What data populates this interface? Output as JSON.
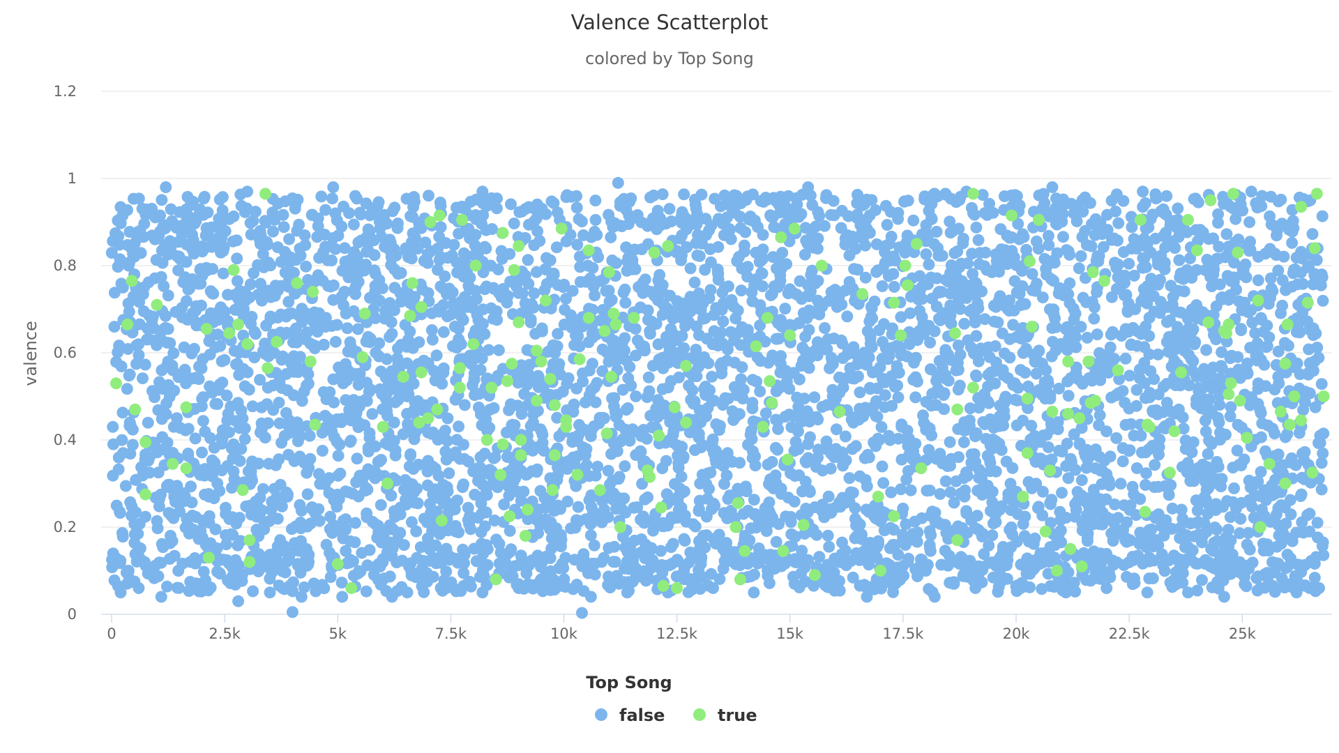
{
  "chart_data": {
    "type": "scatter",
    "title": "Valence Scatterplot",
    "subtitle": "colored by Top Song",
    "xlabel": "",
    "ylabel": "valence",
    "xlim": [
      0,
      27000
    ],
    "ylim": [
      0,
      1.2
    ],
    "x_ticks": [
      {
        "value": 0,
        "label": "0"
      },
      {
        "value": 2500,
        "label": "2.5k"
      },
      {
        "value": 5000,
        "label": "5k"
      },
      {
        "value": 7500,
        "label": "7.5k"
      },
      {
        "value": 10000,
        "label": "10k"
      },
      {
        "value": 12500,
        "label": "12.5k"
      },
      {
        "value": 15000,
        "label": "15k"
      },
      {
        "value": 17500,
        "label": "17.5k"
      },
      {
        "value": 20000,
        "label": "20k"
      },
      {
        "value": 22500,
        "label": "22.5k"
      },
      {
        "value": 25000,
        "label": "25k"
      }
    ],
    "y_ticks": [
      {
        "value": 0,
        "label": "0"
      },
      {
        "value": 0.2,
        "label": "0.2"
      },
      {
        "value": 0.4,
        "label": "0.4"
      },
      {
        "value": 0.6,
        "label": "0.6"
      },
      {
        "value": 0.8,
        "label": "0.8"
      },
      {
        "value": 1.0,
        "label": "1"
      },
      {
        "value": 1.2,
        "label": "1.2"
      }
    ],
    "grid": "horizontal",
    "legend": {
      "title": "Top Song",
      "placement": "bottom-center",
      "items": [
        {
          "label": "false",
          "color": "#7cb5ec"
        },
        {
          "label": "true",
          "color": "#90ed7d"
        }
      ]
    },
    "series": [
      {
        "name": "false",
        "color": "#7cb5ec",
        "density_note_points": "dense uniform cloud across x range; valence mostly between 0.05 and 0.97",
        "points": [
          [
            200,
            0.05
          ],
          [
            600,
            0.06
          ],
          [
            1100,
            0.04
          ],
          [
            1900,
            0.07
          ],
          [
            2800,
            0.03
          ],
          [
            3500,
            0.05
          ],
          [
            4200,
            0.04
          ],
          [
            5100,
            0.04
          ],
          [
            6200,
            0.04
          ],
          [
            6900,
            0.07
          ],
          [
            7400,
            0.06
          ],
          [
            8200,
            0.05
          ],
          [
            9000,
            0.06
          ],
          [
            9800,
            0.07
          ],
          [
            10600,
            0.04
          ],
          [
            11400,
            0.05
          ],
          [
            12300,
            0.05
          ],
          [
            13300,
            0.06
          ],
          [
            14200,
            0.05
          ],
          [
            15100,
            0.07
          ],
          [
            16000,
            0.06
          ],
          [
            16700,
            0.04
          ],
          [
            17300,
            0.07
          ],
          [
            18200,
            0.04
          ],
          [
            19100,
            0.06
          ],
          [
            20100,
            0.06
          ],
          [
            21100,
            0.05
          ],
          [
            22000,
            0.06
          ],
          [
            22900,
            0.05
          ],
          [
            23800,
            0.05
          ],
          [
            24600,
            0.04
          ],
          [
            25400,
            0.06
          ],
          [
            26200,
            0.05
          ],
          [
            26700,
            0.06
          ],
          [
            4000,
            0.005
          ],
          [
            10400,
            0.003
          ],
          [
            11200,
            0.99
          ],
          [
            3000,
            0.97
          ],
          [
            8200,
            0.97
          ],
          [
            15400,
            0.98
          ],
          [
            20800,
            0.98
          ],
          [
            22800,
            0.97
          ],
          [
            25200,
            0.97
          ],
          [
            1200,
            0.98
          ],
          [
            4900,
            0.98
          ],
          [
            18900,
            0.97
          ]
        ]
      },
      {
        "name": "true",
        "color": "#90ed7d",
        "points": [
          [
            100,
            0.53
          ],
          [
            350,
            0.665
          ],
          [
            450,
            0.765
          ],
          [
            520,
            0.47
          ],
          [
            750,
            0.275
          ],
          [
            750,
            0.395
          ],
          [
            1000,
            0.71
          ],
          [
            1350,
            0.345
          ],
          [
            1650,
            0.475
          ],
          [
            1650,
            0.335
          ],
          [
            2100,
            0.655
          ],
          [
            2150,
            0.13
          ],
          [
            2600,
            0.645
          ],
          [
            2700,
            0.79
          ],
          [
            2800,
            0.665
          ],
          [
            2900,
            0.285
          ],
          [
            3000,
            0.62
          ],
          [
            3050,
            0.17
          ],
          [
            3050,
            0.12
          ],
          [
            3400,
            0.965
          ],
          [
            3450,
            0.565
          ],
          [
            3650,
            0.625
          ],
          [
            4100,
            0.76
          ],
          [
            4400,
            0.58
          ],
          [
            4450,
            0.74
          ],
          [
            4500,
            0.435
          ],
          [
            5000,
            0.115
          ],
          [
            5300,
            0.06
          ],
          [
            5550,
            0.59
          ],
          [
            5600,
            0.69
          ],
          [
            6000,
            0.43
          ],
          [
            6100,
            0.3
          ],
          [
            6450,
            0.545
          ],
          [
            6600,
            0.685
          ],
          [
            6650,
            0.76
          ],
          [
            6800,
            0.44
          ],
          [
            6850,
            0.555
          ],
          [
            6850,
            0.705
          ],
          [
            7000,
            0.45
          ],
          [
            7050,
            0.9
          ],
          [
            7200,
            0.47
          ],
          [
            7250,
            0.915
          ],
          [
            7300,
            0.215
          ],
          [
            7700,
            0.565
          ],
          [
            7700,
            0.52
          ],
          [
            7750,
            0.905
          ],
          [
            8000,
            0.62
          ],
          [
            8050,
            0.8
          ],
          [
            8300,
            0.4
          ],
          [
            8400,
            0.52
          ],
          [
            8500,
            0.08
          ],
          [
            8600,
            0.32
          ],
          [
            8650,
            0.875
          ],
          [
            8650,
            0.39
          ],
          [
            8750,
            0.535
          ],
          [
            8800,
            0.225
          ],
          [
            8850,
            0.575
          ],
          [
            8900,
            0.79
          ],
          [
            9000,
            0.845
          ],
          [
            9000,
            0.67
          ],
          [
            9050,
            0.365
          ],
          [
            9050,
            0.4
          ],
          [
            9150,
            0.18
          ],
          [
            9200,
            0.24
          ],
          [
            9400,
            0.605
          ],
          [
            9400,
            0.49
          ],
          [
            9500,
            0.58
          ],
          [
            9600,
            0.72
          ],
          [
            9700,
            0.54
          ],
          [
            9750,
            0.285
          ],
          [
            9800,
            0.365
          ],
          [
            9800,
            0.48
          ],
          [
            9950,
            0.885
          ],
          [
            10050,
            0.445
          ],
          [
            10050,
            0.43
          ],
          [
            10300,
            0.32
          ],
          [
            10350,
            0.585
          ],
          [
            10550,
            0.835
          ],
          [
            10550,
            0.68
          ],
          [
            10800,
            0.285
          ],
          [
            10900,
            0.65
          ],
          [
            10950,
            0.415
          ],
          [
            11000,
            0.785
          ],
          [
            11050,
            0.545
          ],
          [
            11100,
            0.69
          ],
          [
            11150,
            0.665
          ],
          [
            11250,
            0.2
          ],
          [
            11550,
            0.68
          ],
          [
            11850,
            0.33
          ],
          [
            11900,
            0.315
          ],
          [
            12000,
            0.83
          ],
          [
            12100,
            0.41
          ],
          [
            12150,
            0.245
          ],
          [
            12200,
            0.065
          ],
          [
            12300,
            0.845
          ],
          [
            12450,
            0.475
          ],
          [
            12500,
            0.06
          ],
          [
            12700,
            0.44
          ],
          [
            12700,
            0.57
          ],
          [
            13800,
            0.2
          ],
          [
            13850,
            0.255
          ],
          [
            13900,
            0.08
          ],
          [
            14000,
            0.145
          ],
          [
            14250,
            0.615
          ],
          [
            14400,
            0.43
          ],
          [
            14500,
            0.68
          ],
          [
            14550,
            0.535
          ],
          [
            14600,
            0.485
          ],
          [
            14800,
            0.865
          ],
          [
            14850,
            0.145
          ],
          [
            14950,
            0.355
          ],
          [
            15000,
            0.64
          ],
          [
            15100,
            0.885
          ],
          [
            15300,
            0.205
          ],
          [
            15550,
            0.09
          ],
          [
            15700,
            0.8
          ],
          [
            16100,
            0.465
          ],
          [
            16600,
            0.735
          ],
          [
            16950,
            0.27
          ],
          [
            17000,
            0.1
          ],
          [
            17300,
            0.225
          ],
          [
            17300,
            0.715
          ],
          [
            17450,
            0.64
          ],
          [
            17550,
            0.8
          ],
          [
            17600,
            0.755
          ],
          [
            17800,
            0.85
          ],
          [
            17900,
            0.335
          ],
          [
            18650,
            0.645
          ],
          [
            18700,
            0.47
          ],
          [
            18700,
            0.17
          ],
          [
            19050,
            0.52
          ],
          [
            19050,
            0.965
          ],
          [
            19900,
            0.915
          ],
          [
            20150,
            0.27
          ],
          [
            20250,
            0.495
          ],
          [
            20250,
            0.37
          ],
          [
            20300,
            0.81
          ],
          [
            20350,
            0.66
          ],
          [
            20500,
            0.905
          ],
          [
            20650,
            0.19
          ],
          [
            20750,
            0.33
          ],
          [
            20800,
            0.465
          ],
          [
            20900,
            0.1
          ],
          [
            21150,
            0.58
          ],
          [
            21150,
            0.46
          ],
          [
            21200,
            0.15
          ],
          [
            21400,
            0.45
          ],
          [
            21450,
            0.11
          ],
          [
            21600,
            0.58
          ],
          [
            21650,
            0.485
          ],
          [
            21700,
            0.785
          ],
          [
            21750,
            0.49
          ],
          [
            21950,
            0.765
          ],
          [
            22250,
            0.56
          ],
          [
            22750,
            0.905
          ],
          [
            22850,
            0.235
          ],
          [
            22900,
            0.435
          ],
          [
            22950,
            0.43
          ],
          [
            23400,
            0.325
          ],
          [
            23500,
            0.42
          ],
          [
            23650,
            0.555
          ],
          [
            23800,
            0.905
          ],
          [
            24000,
            0.835
          ],
          [
            24250,
            0.67
          ],
          [
            24300,
            0.95
          ],
          [
            24600,
            0.65
          ],
          [
            24650,
            0.645
          ],
          [
            24700,
            0.665
          ],
          [
            24700,
            0.505
          ],
          [
            24750,
            0.53
          ],
          [
            24800,
            0.965
          ],
          [
            24900,
            0.83
          ],
          [
            24950,
            0.49
          ],
          [
            25100,
            0.405
          ],
          [
            25350,
            0.72
          ],
          [
            25400,
            0.2
          ],
          [
            25600,
            0.345
          ],
          [
            25850,
            0.465
          ],
          [
            25950,
            0.575
          ],
          [
            25950,
            0.3
          ],
          [
            26000,
            0.665
          ],
          [
            26050,
            0.435
          ],
          [
            26150,
            0.5
          ],
          [
            26300,
            0.445
          ],
          [
            26300,
            0.935
          ],
          [
            26450,
            0.715
          ],
          [
            26550,
            0.325
          ],
          [
            26600,
            0.84
          ],
          [
            26650,
            0.965
          ],
          [
            26800,
            0.5
          ]
        ]
      }
    ]
  }
}
